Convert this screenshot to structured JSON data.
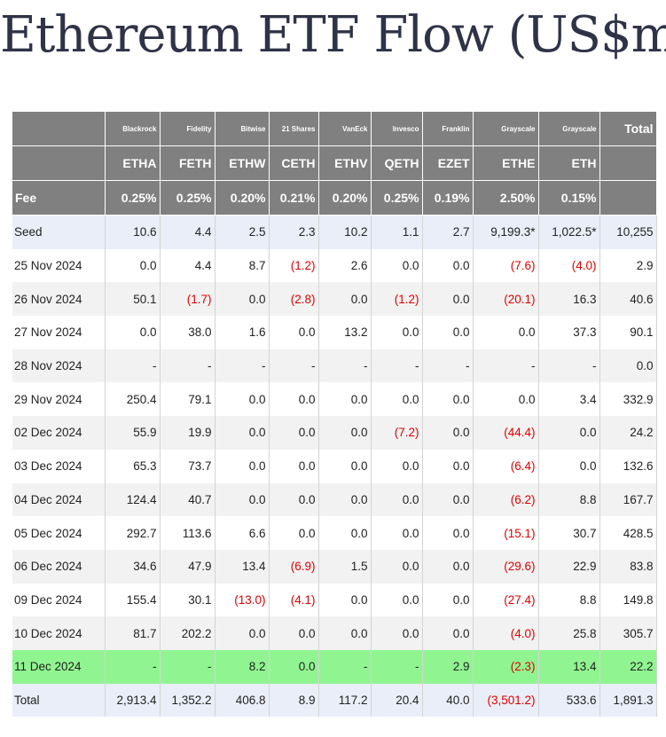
{
  "title": "Ethereum ETF Flow (US$m)",
  "colors": {
    "header_bg": "#808080",
    "negative": "#e00000",
    "highlight": "#90f590",
    "seed_total_bg": "#e9eef8"
  },
  "header": {
    "issuers": [
      "Blackrock",
      "Fidelity",
      "Bitwise",
      "21 Shares",
      "VanEck",
      "Invesco",
      "Franklin",
      "Grayscale",
      "Grayscale"
    ],
    "total_label": "Total",
    "tickers": [
      "ETHA",
      "FETH",
      "ETHW",
      "CETH",
      "ETHV",
      "QETH",
      "EZET",
      "ETHE",
      "ETH"
    ],
    "fee_label": "Fee",
    "fees": [
      "0.25%",
      "0.25%",
      "0.20%",
      "0.21%",
      "0.20%",
      "0.25%",
      "0.19%",
      "2.50%",
      "0.15%"
    ]
  },
  "rows": [
    {
      "label": "Seed",
      "values": [
        "10.6",
        "4.4",
        "2.5",
        "2.3",
        "10.2",
        "1.1",
        "2.7",
        "9,199.3*",
        "1,022.5*",
        "10,255"
      ]
    },
    {
      "label": "25 Nov 2024",
      "values": [
        "0.0",
        "4.4",
        "8.7",
        "(1.2)",
        "2.6",
        "0.0",
        "0.0",
        "(7.6)",
        "(4.0)",
        "2.9"
      ]
    },
    {
      "label": "26 Nov 2024",
      "values": [
        "50.1",
        "(1.7)",
        "0.0",
        "(2.8)",
        "0.0",
        "(1.2)",
        "0.0",
        "(20.1)",
        "16.3",
        "40.6"
      ]
    },
    {
      "label": "27 Nov 2024",
      "values": [
        "0.0",
        "38.0",
        "1.6",
        "0.0",
        "13.2",
        "0.0",
        "0.0",
        "0.0",
        "37.3",
        "90.1"
      ]
    },
    {
      "label": "28 Nov 2024",
      "values": [
        "-",
        "-",
        "-",
        "-",
        "-",
        "-",
        "-",
        "-",
        "-",
        "0.0"
      ]
    },
    {
      "label": "29 Nov 2024",
      "values": [
        "250.4",
        "79.1",
        "0.0",
        "0.0",
        "0.0",
        "0.0",
        "0.0",
        "0.0",
        "3.4",
        "332.9"
      ]
    },
    {
      "label": "02 Dec 2024",
      "values": [
        "55.9",
        "19.9",
        "0.0",
        "0.0",
        "0.0",
        "(7.2)",
        "0.0",
        "(44.4)",
        "0.0",
        "24.2"
      ]
    },
    {
      "label": "03 Dec 2024",
      "values": [
        "65.3",
        "73.7",
        "0.0",
        "0.0",
        "0.0",
        "0.0",
        "0.0",
        "(6.4)",
        "0.0",
        "132.6"
      ]
    },
    {
      "label": "04 Dec 2024",
      "values": [
        "124.4",
        "40.7",
        "0.0",
        "0.0",
        "0.0",
        "0.0",
        "0.0",
        "(6.2)",
        "8.8",
        "167.7"
      ]
    },
    {
      "label": "05 Dec 2024",
      "values": [
        "292.7",
        "113.6",
        "6.6",
        "0.0",
        "0.0",
        "0.0",
        "0.0",
        "(15.1)",
        "30.7",
        "428.5"
      ]
    },
    {
      "label": "06 Dec 2024",
      "values": [
        "34.6",
        "47.9",
        "13.4",
        "(6.9)",
        "1.5",
        "0.0",
        "0.0",
        "(29.6)",
        "22.9",
        "83.8"
      ]
    },
    {
      "label": "09 Dec 2024",
      "values": [
        "155.4",
        "30.1",
        "(13.0)",
        "(4.1)",
        "0.0",
        "0.0",
        "0.0",
        "(27.4)",
        "8.8",
        "149.8"
      ]
    },
    {
      "label": "10 Dec 2024",
      "values": [
        "81.7",
        "202.2",
        "0.0",
        "0.0",
        "0.0",
        "0.0",
        "0.0",
        "(4.0)",
        "25.8",
        "305.7"
      ]
    },
    {
      "label": "11 Dec 2024",
      "values": [
        "-",
        "-",
        "8.2",
        "0.0",
        "-",
        "-",
        "2.9",
        "(2.3)",
        "13.4",
        "22.2"
      ]
    },
    {
      "label": "Total",
      "values": [
        "2,913.4",
        "1,352.2",
        "406.8",
        "8.9",
        "117.2",
        "20.4",
        "40.0",
        "(3,501.2)",
        "533.6",
        "1,891.3"
      ]
    }
  ]
}
